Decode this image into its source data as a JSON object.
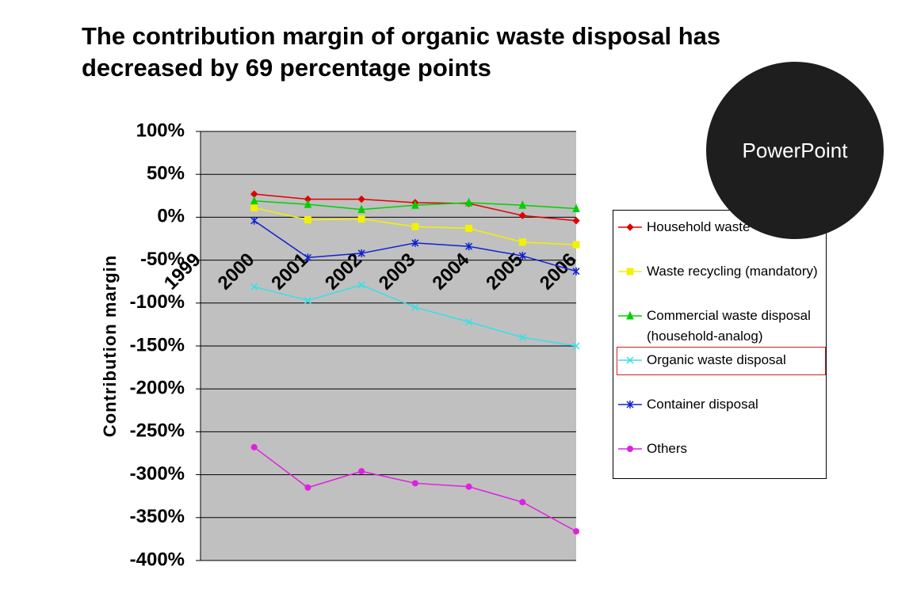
{
  "chart_data": {
    "type": "line",
    "title": "The contribution margin of organic waste disposal has decreased by 69 percentage points",
    "ylabel": "Contribution margin",
    "categories": [
      "1999",
      "2000",
      "2001",
      "2002",
      "2003",
      "2004",
      "2005",
      "2006"
    ],
    "series": [
      {
        "name": "Household waste",
        "color": "#e00000",
        "marker": "diamond",
        "values": [
          null,
          27,
          21,
          21,
          17,
          16,
          2,
          -4
        ]
      },
      {
        "name": "Waste recycling (mandatory)",
        "color": "#f2f200",
        "marker": "square",
        "values": [
          null,
          11,
          -3,
          -2,
          -11,
          -13,
          -29,
          -32
        ]
      },
      {
        "name": "Commercial waste disposal (household-analog)",
        "color": "#00d000",
        "marker": "triangle",
        "values": [
          null,
          19,
          15,
          9,
          14,
          17,
          14,
          10
        ]
      },
      {
        "name": "Organic waste disposal",
        "color": "#33e0e8",
        "marker": "x",
        "values": [
          null,
          -81,
          -97,
          -79,
          -105,
          -122,
          -140,
          -150
        ]
      },
      {
        "name": "Container disposal",
        "color": "#1020d0",
        "marker": "star",
        "values": [
          null,
          -4,
          -47,
          -42,
          -30,
          -34,
          -45,
          -63
        ]
      },
      {
        "name": "Others",
        "color": "#e020e0",
        "marker": "circle",
        "values": [
          null,
          -268,
          -315,
          -296,
          -310,
          -314,
          -332,
          -366
        ]
      }
    ],
    "ylim": [
      -400,
      100
    ],
    "yticks": [
      {
        "value": 100,
        "label": "100%"
      },
      {
        "value": 50,
        "label": "50%"
      },
      {
        "value": 0,
        "label": "0%"
      },
      {
        "value": -50,
        "label": "-50%"
      },
      {
        "value": -100,
        "label": "-100%"
      },
      {
        "value": -150,
        "label": "-150%"
      },
      {
        "value": -200,
        "label": "-200%"
      },
      {
        "value": -250,
        "label": "-250%"
      },
      {
        "value": -300,
        "label": "-300%"
      },
      {
        "value": -350,
        "label": "-350%"
      },
      {
        "value": -400,
        "label": "-400%"
      }
    ],
    "grid": true
  },
  "badge": {
    "label": "PowerPoint"
  }
}
